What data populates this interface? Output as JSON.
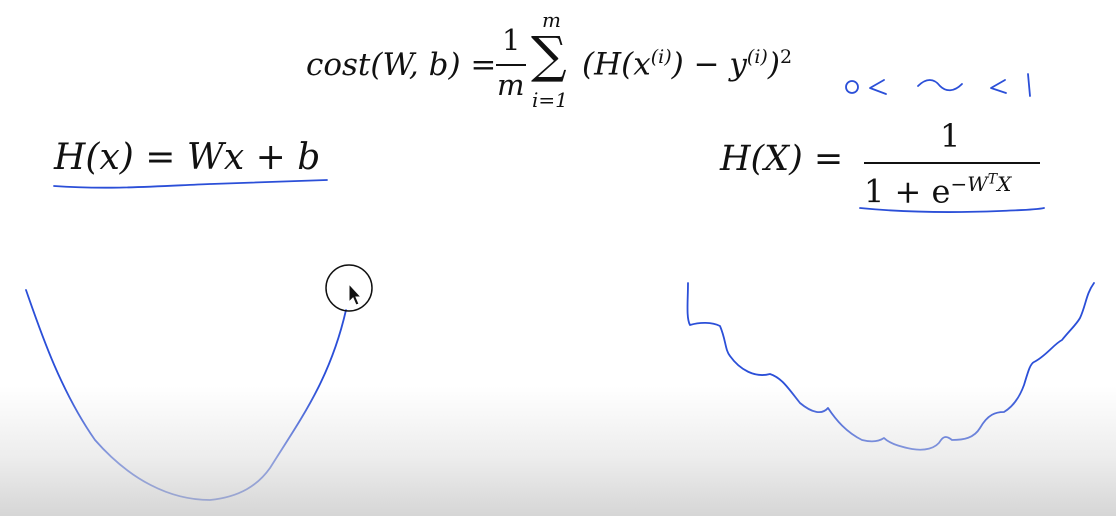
{
  "formulas": {
    "cost": {
      "lhs": "cost(W, b) =",
      "frac_numerator": "1",
      "frac_denominator": "m",
      "sum_symbol": "∑",
      "sum_upper": "m",
      "sum_lower": "i=1",
      "body": "(H(x",
      "sup_1": "(i)",
      "body_2": ") − y",
      "sup_2": "(i)",
      "body_3": ")",
      "sup_3": "2"
    },
    "linear": {
      "text": "H(x) = Wx + b"
    },
    "sigmoid": {
      "lhs": "H(X) =",
      "numerator": "1",
      "denominator": "1 + e",
      "exponent": "−W",
      "exponent_sup": "T",
      "exponent_tail": "X"
    }
  },
  "annotations": {
    "range_note": "0< ~ <1",
    "ink_color": "#2b4fd8"
  },
  "cursor": {
    "icon": "mouse-pointer-icon",
    "highlight": "cursor-highlight-circle"
  }
}
